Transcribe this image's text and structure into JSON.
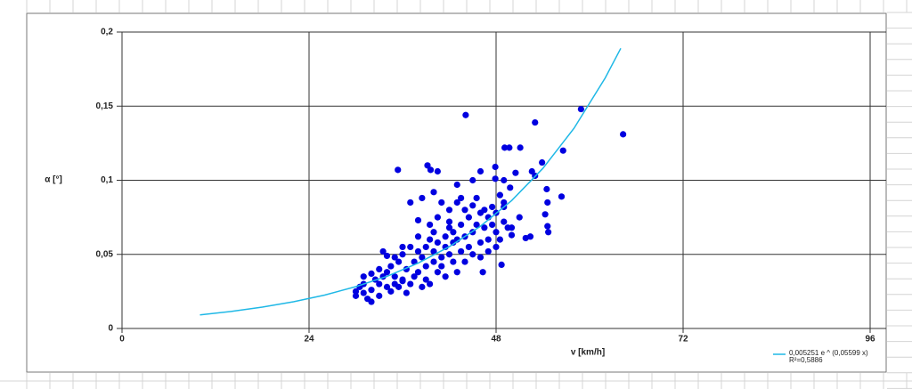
{
  "chart_data": {
    "type": "scatter",
    "x_label": "v [km/h]",
    "y_label": "α [°]",
    "xlim": [
      0,
      96
    ],
    "xticks": [
      0,
      24,
      48,
      72,
      96
    ],
    "ylim": [
      0,
      0.2
    ],
    "yticks": [
      {
        "value": 0,
        "label": "0"
      },
      {
        "value": 0.05,
        "label": "0,05"
      },
      {
        "value": 0.1,
        "label": "0,1"
      },
      {
        "value": 0.15,
        "label": "0,15"
      },
      {
        "value": 0.2,
        "label": "0,2"
      }
    ],
    "grid": true,
    "series": [
      {
        "type": "scatter",
        "color": "#0000e0",
        "x": [
          44.1,
          58.9,
          64.3,
          53.0,
          56.6,
          35.4,
          39.2,
          39.6,
          49.1,
          49.7,
          51.1,
          47.9,
          53.9,
          52.6,
          53.0,
          47.9,
          49.8,
          54.5,
          56.4,
          54.6,
          54.3,
          54.6,
          52.4,
          51.8,
          54.7,
          48.7,
          46.3,
          30,
          30,
          30.5,
          31,
          31,
          31.5,
          32,
          32,
          32.5,
          33,
          33,
          33.5,
          33.5,
          34,
          34,
          34.5,
          34.5,
          35,
          35,
          35.5,
          35.5,
          36,
          36,
          36,
          36.5,
          36.5,
          37,
          37,
          37,
          37.5,
          37.5,
          38,
          38,
          38,
          38.5,
          38.5,
          38.5,
          39,
          39,
          39,
          39.5,
          39.5,
          39.5,
          40,
          40,
          40,
          40,
          40.5,
          40.5,
          40.5,
          41,
          41,
          41,
          41.5,
          41.5,
          41.5,
          42,
          42,
          42,
          42,
          42.5,
          42.5,
          42.5,
          43,
          43,
          43,
          43,
          43.5,
          43.5,
          43.5,
          44,
          44,
          44,
          44.5,
          44.5,
          45,
          45,
          45,
          45.5,
          45.5,
          46,
          46,
          46,
          46.5,
          46.5,
          47,
          47,
          47,
          47.5,
          47.5,
          48,
          48,
          48,
          48.5,
          48.5,
          49,
          49,
          49.5,
          50,
          50,
          51,
          46,
          45,
          40.5,
          34,
          31,
          32,
          33,
          35,
          36,
          38,
          49,
          49,
          50.5
        ],
        "values": [
          0.144,
          0.148,
          0.131,
          0.139,
          0.12,
          0.107,
          0.11,
          0.107,
          0.122,
          0.122,
          0.122,
          0.109,
          0.112,
          0.106,
          0.103,
          0.101,
          0.095,
          0.094,
          0.089,
          0.085,
          0.077,
          0.069,
          0.062,
          0.061,
          0.065,
          0.043,
          0.038,
          0.022,
          0.025,
          0.028,
          0.03,
          0.024,
          0.02,
          0.018,
          0.026,
          0.033,
          0.022,
          0.03,
          0.035,
          0.052,
          0.028,
          0.038,
          0.025,
          0.042,
          0.03,
          0.035,
          0.045,
          0.028,
          0.033,
          0.05,
          0.032,
          0.04,
          0.024,
          0.03,
          0.055,
          0.085,
          0.035,
          0.045,
          0.038,
          0.062,
          0.073,
          0.028,
          0.048,
          0.088,
          0.033,
          0.055,
          0.042,
          0.06,
          0.07,
          0.03,
          0.045,
          0.052,
          0.092,
          0.065,
          0.038,
          0.058,
          0.075,
          0.048,
          0.085,
          0.042,
          0.062,
          0.055,
          0.035,
          0.068,
          0.072,
          0.05,
          0.08,
          0.058,
          0.065,
          0.045,
          0.085,
          0.06,
          0.038,
          0.097,
          0.088,
          0.07,
          0.052,
          0.08,
          0.062,
          0.045,
          0.075,
          0.055,
          0.083,
          0.065,
          0.05,
          0.088,
          0.07,
          0.078,
          0.058,
          0.048,
          0.08,
          0.068,
          0.075,
          0.06,
          0.052,
          0.082,
          0.07,
          0.078,
          0.065,
          0.055,
          0.09,
          0.06,
          0.072,
          0.082,
          0.068,
          0.063,
          0.068,
          0.075,
          0.106,
          0.1,
          0.106,
          0.049,
          0.035,
          0.037,
          0.04,
          0.048,
          0.055,
          0.052,
          0.085,
          0.1,
          0.105
        ]
      },
      {
        "type": "line",
        "name": "0,005251 e ^ (0,05599 x)",
        "color": "#1fb8e6",
        "x": [
          10,
          14,
          18,
          22,
          26,
          30,
          34,
          38,
          42,
          46,
          50,
          54,
          58,
          62,
          64
        ],
        "values": [
          0.0092,
          0.0115,
          0.0144,
          0.018,
          0.0225,
          0.0282,
          0.0352,
          0.0441,
          0.0552,
          0.069,
          0.0863,
          0.108,
          0.1351,
          0.169,
          0.189
        ]
      }
    ],
    "legend_note": "R²=0,5886"
  }
}
